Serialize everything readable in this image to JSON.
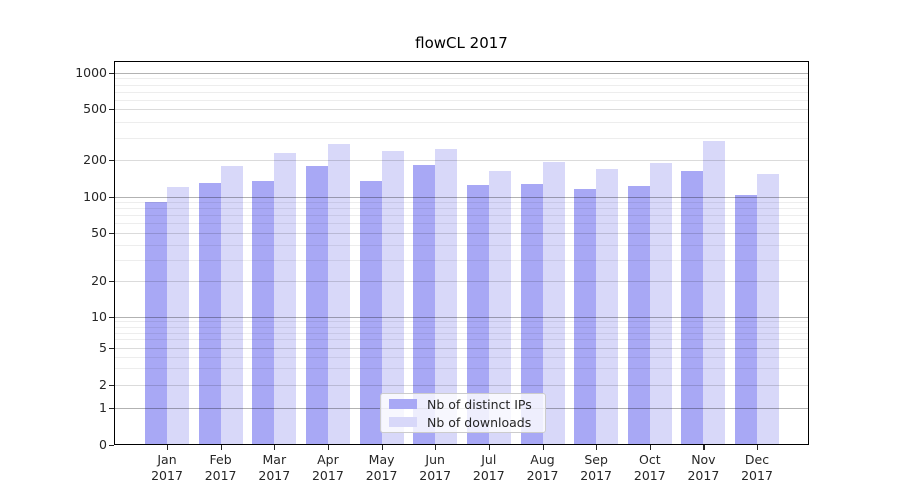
{
  "title": "flowCL 2017",
  "chart_data": {
    "type": "bar",
    "title": "flowCL 2017",
    "categories": [
      "Jan",
      "Feb",
      "Mar",
      "Apr",
      "May",
      "Jun",
      "Jul",
      "Aug",
      "Sep",
      "Oct",
      "Nov",
      "Dec"
    ],
    "category_year": "2017",
    "series": [
      {
        "name": "Nb of distinct IPs",
        "color": "#a8a8f5",
        "values": [
          90,
          130,
          135,
          180,
          135,
          182,
          125,
          127,
          115,
          122,
          162,
          104
        ]
      },
      {
        "name": "Nb of downloads",
        "color": "#d8d8f9",
        "values": [
          120,
          180,
          230,
          267,
          235,
          246,
          162,
          192,
          170,
          190,
          281,
          153
        ]
      }
    ],
    "y_axis": {
      "scale": "symlog",
      "ticks": [
        0,
        1,
        2,
        5,
        10,
        20,
        50,
        100,
        200,
        500,
        1000
      ],
      "ylim": [
        0,
        1250
      ]
    },
    "x_axis": {
      "tick_format": "month-over-year"
    },
    "grid": "on",
    "legend_position": "lower center"
  }
}
